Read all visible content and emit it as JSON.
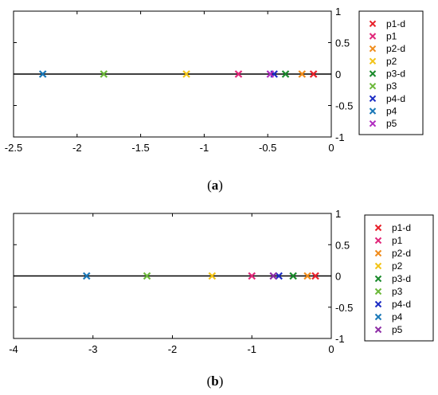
{
  "chart_data": [
    {
      "type": "scatter",
      "panel_label": "(a)",
      "caption": {
        "open": "(",
        "letter": "a",
        "close": ")"
      },
      "xlim": [
        -2.5,
        0
      ],
      "ylim": [
        -1,
        1
      ],
      "x_ticks": [
        -2.5,
        -2,
        -1.5,
        -1,
        -0.5,
        0
      ],
      "x_tick_labels": [
        "-2.5",
        "-2",
        "-1.5",
        "-1",
        "-0.5",
        "0"
      ],
      "y_ticks": [
        1,
        0.5,
        0,
        -0.5,
        -1
      ],
      "y_tick_labels": [
        "1",
        "0.5",
        "0",
        "-0.5",
        "-1"
      ],
      "y_axis_side": "right",
      "grid": false,
      "legend_position": "outside-right",
      "series": [
        {
          "name": "p1-d",
          "color": "#e8202a",
          "marker": "x",
          "points": [
            {
              "x": -0.14,
              "y": 0
            }
          ]
        },
        {
          "name": "p1",
          "color": "#e0287a",
          "marker": "x",
          "points": [
            {
              "x": -0.73,
              "y": 0
            }
          ]
        },
        {
          "name": "p2-d",
          "color": "#f08c1c",
          "marker": "x",
          "points": [
            {
              "x": -0.23,
              "y": 0
            }
          ]
        },
        {
          "name": "p2",
          "color": "#f2c418",
          "marker": "x",
          "points": [
            {
              "x": -1.14,
              "y": 0
            }
          ]
        },
        {
          "name": "p3-d",
          "color": "#1a8a2c",
          "marker": "x",
          "points": [
            {
              "x": -0.36,
              "y": 0
            }
          ]
        },
        {
          "name": "p3",
          "color": "#6cb83a",
          "marker": "x",
          "points": [
            {
              "x": -1.79,
              "y": 0
            }
          ]
        },
        {
          "name": "p4-d",
          "color": "#1c2cc4",
          "marker": "x",
          "points": [
            {
              "x": -0.45,
              "y": 0
            }
          ]
        },
        {
          "name": "p4",
          "color": "#1a78b8",
          "marker": "x",
          "points": [
            {
              "x": -2.27,
              "y": 0
            }
          ]
        },
        {
          "name": "p5",
          "color": "#b02cc0",
          "marker": "x",
          "points": [
            {
              "x": -0.48,
              "y": 0
            }
          ]
        }
      ]
    },
    {
      "type": "scatter",
      "panel_label": "(b)",
      "caption": {
        "open": "(",
        "letter": "b",
        "close": ")"
      },
      "xlim": [
        -4,
        0
      ],
      "ylim": [
        -1,
        1
      ],
      "x_ticks": [
        -4,
        -3,
        -2,
        -1,
        0
      ],
      "x_tick_labels": [
        "-4",
        "-3",
        "-2",
        "-1",
        "0"
      ],
      "y_ticks": [
        1,
        0.5,
        0,
        -0.5,
        -1
      ],
      "y_tick_labels": [
        "1",
        "0.5",
        "0",
        "-0.5",
        "-1"
      ],
      "y_axis_side": "right",
      "grid": false,
      "legend_position": "outside-right",
      "series": [
        {
          "name": "p1-d",
          "color": "#e8202a",
          "marker": "x",
          "points": [
            {
              "x": -0.2,
              "y": 0
            }
          ]
        },
        {
          "name": "p1",
          "color": "#e0287a",
          "marker": "x",
          "points": [
            {
              "x": -1.0,
              "y": 0
            }
          ]
        },
        {
          "name": "p2-d",
          "color": "#f08c1c",
          "marker": "x",
          "points": [
            {
              "x": -0.3,
              "y": 0
            }
          ]
        },
        {
          "name": "p2",
          "color": "#f2c418",
          "marker": "x",
          "points": [
            {
              "x": -1.5,
              "y": 0
            }
          ]
        },
        {
          "name": "p3-d",
          "color": "#1a8a2c",
          "marker": "x",
          "points": [
            {
              "x": -0.48,
              "y": 0
            }
          ]
        },
        {
          "name": "p3",
          "color": "#6cb83a",
          "marker": "x",
          "points": [
            {
              "x": -2.32,
              "y": 0
            }
          ]
        },
        {
          "name": "p4-d",
          "color": "#1c2cc4",
          "marker": "x",
          "points": [
            {
              "x": -0.66,
              "y": 0
            }
          ]
        },
        {
          "name": "p4",
          "color": "#1a78b8",
          "marker": "x",
          "points": [
            {
              "x": -3.08,
              "y": 0
            }
          ]
        },
        {
          "name": "p5",
          "color": "#8e2ea6",
          "marker": "x",
          "points": [
            {
              "x": -0.73,
              "y": 0
            }
          ]
        }
      ]
    }
  ]
}
